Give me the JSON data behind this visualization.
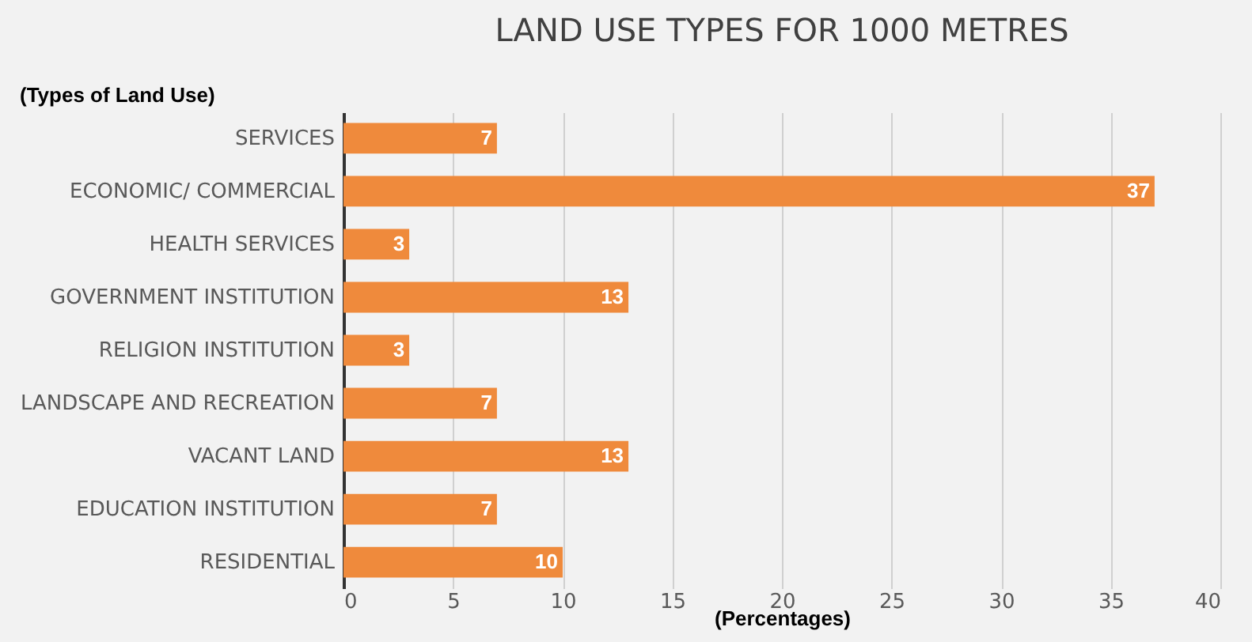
{
  "chart_data": {
    "type": "bar",
    "orientation": "horizontal",
    "title": "LAND USE TYPES FOR 1000 METRES",
    "ylabel": "(Types of Land Use)",
    "xlabel": "(Percentages)",
    "categories": [
      "SERVICES",
      "ECONOMIC/ COMMERCIAL",
      "HEALTH SERVICES",
      "GOVERNMENT INSTITUTION",
      "RELIGION INSTITUTION",
      "LANDSCAPE AND RECREATION",
      "VACANT LAND",
      "EDUCATION INSTITUTION",
      "RESIDENTIAL"
    ],
    "values": [
      7,
      37,
      3,
      13,
      3,
      7,
      13,
      7,
      10
    ],
    "color": "#ef8a3c",
    "xlim": [
      0,
      40
    ],
    "xticks": [
      0,
      5,
      10,
      15,
      20,
      25,
      30,
      35,
      40
    ],
    "grid": "x",
    "data_labels": true
  }
}
